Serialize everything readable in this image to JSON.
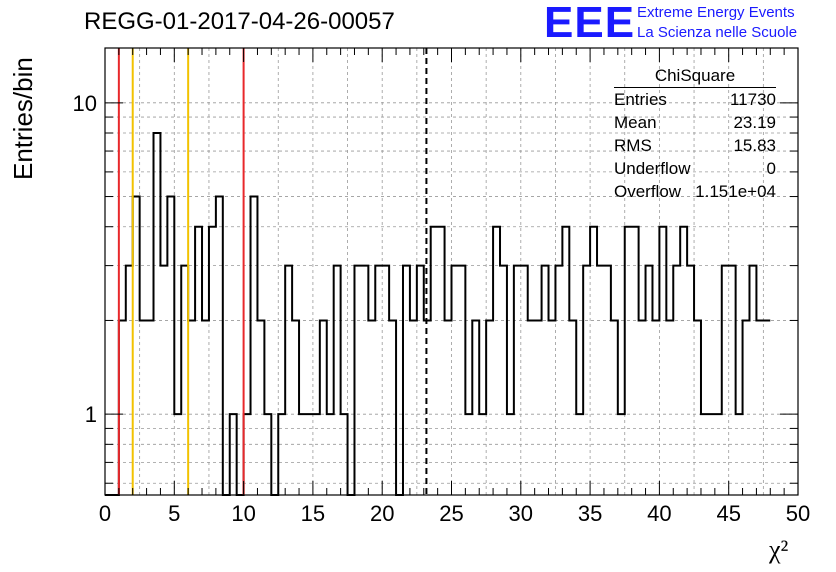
{
  "title": "REGG-01-2017-04-26-00057",
  "logo": {
    "mark": "EEE",
    "line1": "Extreme Energy Events",
    "line2": "La Scienza nelle Scuole"
  },
  "stats": {
    "name": "ChiSquare",
    "rows": [
      {
        "label": "Entries",
        "value": "11730"
      },
      {
        "label": "Mean",
        "value": "23.19"
      },
      {
        "label": "RMS",
        "value": "15.83"
      },
      {
        "label": "Underflow",
        "value": "0"
      },
      {
        "label": "Overflow",
        "value": "1.151e+04"
      }
    ]
  },
  "chart_data": {
    "type": "bar",
    "subtype": "step-histogram",
    "xlabel": "χ²",
    "ylabel": "Entries/bin",
    "xlim": [
      0,
      50
    ],
    "ylim": [
      0.55,
      15
    ],
    "yscale": "log",
    "bin_width": 0.5,
    "x_ticks": [
      0,
      5,
      10,
      15,
      20,
      25,
      30,
      35,
      40,
      45,
      50
    ],
    "y_ticks": [
      1,
      10
    ],
    "grid": true,
    "values": [
      0,
      0,
      2,
      3,
      5,
      2,
      2,
      8,
      3,
      5,
      1,
      3,
      2,
      4,
      2,
      4,
      5,
      0,
      1,
      0,
      1,
      5,
      2,
      1,
      0,
      1,
      3,
      2,
      1,
      1,
      1,
      2,
      1,
      3,
      1,
      0,
      3,
      3,
      2,
      3,
      3,
      2,
      0,
      3,
      2,
      3,
      2,
      4,
      4,
      2,
      3,
      3,
      1,
      2,
      1,
      2,
      4,
      3,
      1,
      3,
      3,
      2,
      2,
      3,
      2,
      3,
      4,
      2,
      1,
      3,
      4,
      3,
      3,
      2,
      1,
      4,
      4,
      2,
      3,
      2,
      4,
      2,
      3,
      4,
      3,
      2,
      1,
      1,
      1,
      3,
      3,
      1,
      2,
      3,
      2,
      2
    ],
    "vertical_lines": [
      {
        "x": 1,
        "color": "#e8282b",
        "style": "solid"
      },
      {
        "x": 2,
        "color": "#f2c200",
        "style": "solid"
      },
      {
        "x": 6,
        "color": "#f2c200",
        "style": "solid"
      },
      {
        "x": 10,
        "color": "#e8282b",
        "style": "solid"
      },
      {
        "x": 23.19,
        "color": "#000000",
        "style": "dashed"
      }
    ]
  }
}
